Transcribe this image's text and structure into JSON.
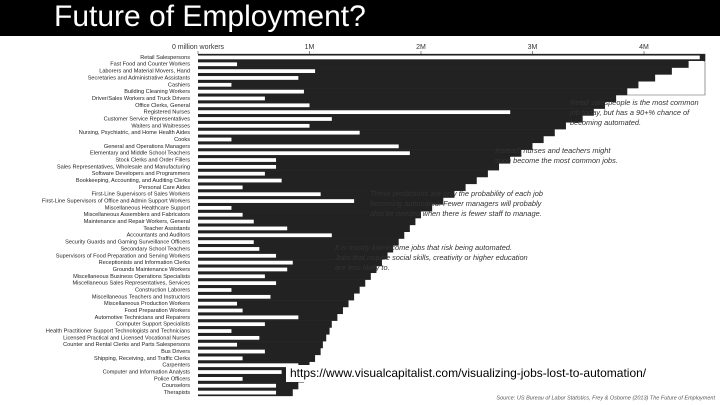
{
  "chart_data": {
    "type": "bar",
    "title": "Future of Employment?",
    "categories": [
      "Retail Salespersons",
      "Fast Food and Counter Workers",
      "Laborers and Material Movers, Hand",
      "Secretaries and Administrative Assistants",
      "Cashiers",
      "Building Cleaning Workers",
      "Driver/Sales Workers and Truck Drivers",
      "Office Clerks, General",
      "Registered Nurses",
      "Customer Service Representatives",
      "Waiters and Waitresses",
      "Nursing, Psychiatric, and Home Health Aides",
      "Cooks",
      "General and Operations Managers",
      "Elementary and Middle School Teachers",
      "Stock Clerks and Order Fillers",
      "Sales Representatives, Wholesale and Manufacturing",
      "Software Developers and Programmers",
      "Bookkeeping, Accounting, and Auditing Clerks",
      "Personal Care Aides",
      "First-Line Supervisors of Sales Workers",
      "First-Line Supervisors of Office and Admin Support Workers",
      "Miscellaneous Healthcare Support",
      "Miscellaneous Assemblers and Fabricators",
      "Maintenance and Repair Workers, General",
      "Teacher Assistants",
      "Accountants and Auditors",
      "Security Guards and Gaming Surveillance Officers",
      "Secondary School Teachers",
      "Supervisors of Food Preparation and Serving Workers",
      "Receptionists and Information Clerks",
      "Grounds Maintenance Workers",
      "Miscellaneous Business Operations Specialists",
      "Miscellaneous Sales Representatives, Services",
      "Construction Laborers",
      "Miscellaneous Teachers and Instructors",
      "Miscellaneous Production Workers",
      "Food Preparation Workers",
      "Automotive Technicians and Repairers",
      "Computer Support Specialists",
      "Health Practitioner Support Technologists and Technicians",
      "Licensed Practical and Licensed Vocational Nurses",
      "Counter and Rental Clerks and Parts Salespersons",
      "Bus Drivers",
      "Shipping, Receiving, and Traffic Clerks",
      "Carpenters",
      "Computer and Information Analysts",
      "Police Officers",
      "Counselors",
      "Therapists"
    ],
    "series": [
      {
        "color": "#222222",
        "values": [
          4550000,
          4400000,
          4250000,
          4100000,
          3950000,
          3850000,
          3750000,
          3650000,
          3550000,
          3450000,
          3300000,
          3200000,
          3100000,
          3000000,
          2900000,
          2800000,
          2700000,
          2600000,
          2500000,
          2400000,
          2300000,
          2200000,
          2100000,
          2000000,
          1950000,
          1900000,
          1850000,
          1800000,
          1750000,
          1700000,
          1650000,
          1600000,
          1550000,
          1500000,
          1450000,
          1400000,
          1350000,
          1300000,
          1250000,
          1200000,
          1180000,
          1150000,
          1120000,
          1100000,
          1050000,
          1000000,
          980000,
          950000,
          900000,
          850000
        ]
      },
      {
        "color": "#ffffff",
        "values": [
          4500000,
          350000,
          1050000,
          900000,
          300000,
          950000,
          600000,
          1000000,
          2800000,
          1200000,
          1000000,
          1450000,
          300000,
          1800000,
          1900000,
          700000,
          700000,
          600000,
          750000,
          400000,
          1100000,
          1400000,
          300000,
          400000,
          500000,
          800000,
          1200000,
          500000,
          550000,
          700000,
          850000,
          800000,
          600000,
          700000,
          300000,
          650000,
          350000,
          400000,
          900000,
          600000,
          300000,
          550000,
          350000,
          600000,
          400000,
          900000,
          750000,
          400000,
          700000,
          700000
        ]
      }
    ],
    "xlim": [
      0,
      4700000
    ],
    "xticks": [
      {
        "value": 0,
        "label": "0 million workers"
      },
      {
        "value": 1000000,
        "label": "1M"
      },
      {
        "value": 2000000,
        "label": "2M"
      },
      {
        "value": 3000000,
        "label": "3M"
      },
      {
        "value": 4000000,
        "label": "4M"
      }
    ],
    "annotations": [
      [
        "Retail salespeople is the most common",
        "job today, but has a 90+% chance of",
        "becoming automated."
      ],
      [
        "Instead, nurses and teachers might",
        "soon become the most common jobs."
      ],
      [
        "These predictions are only the probability of each job",
        "becoming automated. Fewer managers will probably",
        "also be needed when there is fewer staff to manage."
      ],
      [
        "It is mostly low-income jobs that risk being automated.",
        "Jobs that require social skills, creativity or higher education",
        "are less likely to."
      ]
    ],
    "url": "https://www.visualcapitalist.com/visualizing-jobs-lost-to-automation/",
    "source": "Source: US Bureau of Labor Statistics, Frey & Osborne (2013) The Future of Employment"
  }
}
